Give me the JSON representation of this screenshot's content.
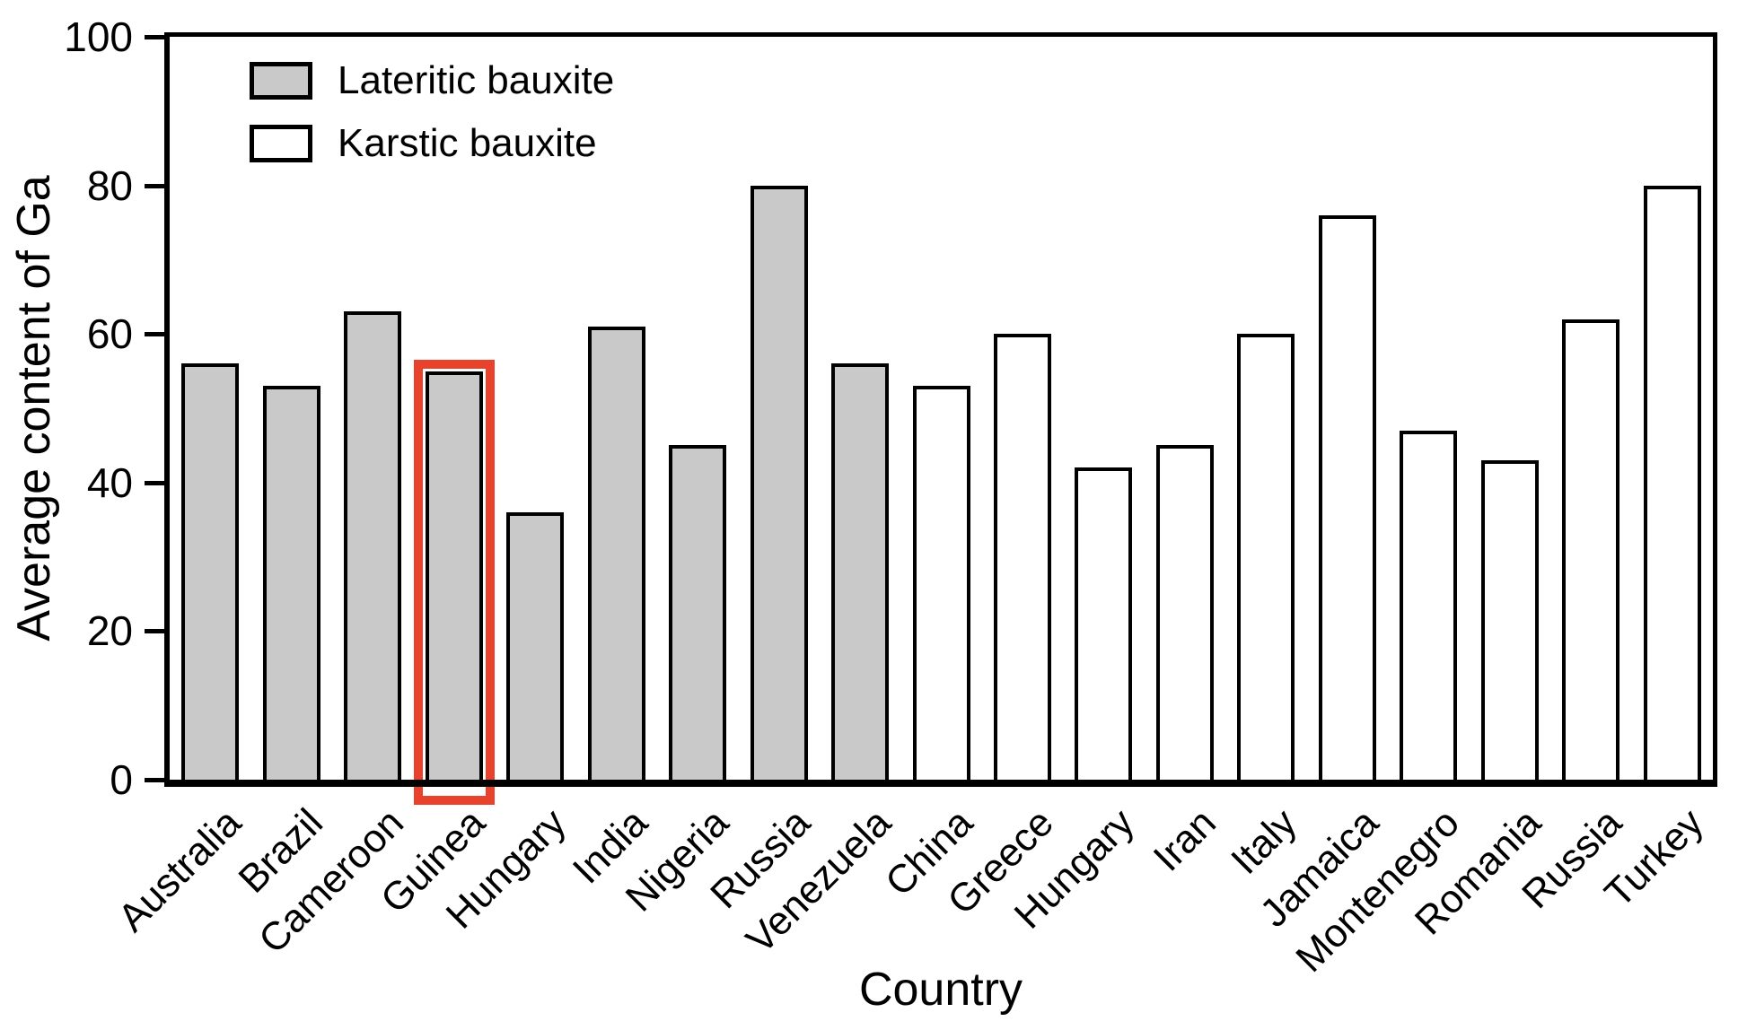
{
  "chart_data": {
    "type": "bar",
    "title": "",
    "xlabel": "Country",
    "ylabel": "Average content of Ga",
    "ylim": [
      0,
      100
    ],
    "yticks": [
      0,
      20,
      40,
      60,
      80,
      100
    ],
    "y_tick_labels": [
      "0",
      "20",
      "40",
      "60",
      "80",
      "100"
    ],
    "grid": false,
    "legend_position": "inside-top-left",
    "bar_border_color": "#000000",
    "highlight_color": "#e8422c",
    "categories": [
      "Australia",
      "Brazil",
      "Cameroon",
      "Guinea",
      "Hungary",
      "India",
      "Nigeria",
      "Russia",
      "Venezuela",
      "China",
      "Greece",
      "Hungary",
      "Iran",
      "Italy",
      "Jamaica",
      "Montenegro",
      "Romania",
      "Russia",
      "Turkey"
    ],
    "series": [
      {
        "name": "Lateritic bauxite",
        "fill": "#c9c9c9",
        "categories": [
          "Australia",
          "Brazil",
          "Cameroon",
          "Guinea",
          "Hungary",
          "India",
          "Nigeria",
          "Russia",
          "Venezuela"
        ],
        "values": [
          56,
          53,
          63,
          55,
          36,
          61,
          45,
          80,
          56
        ]
      },
      {
        "name": "Karstic bauxite",
        "fill": "#ffffff",
        "categories": [
          "China",
          "Greece",
          "Hungary",
          "Iran",
          "Italy",
          "Jamaica",
          "Montenegro",
          "Romania",
          "Russia",
          "Turkey"
        ],
        "values": [
          53,
          60,
          42,
          45,
          60,
          76,
          47,
          43,
          62,
          80
        ]
      }
    ],
    "highlight": {
      "series": "Lateritic bauxite",
      "category": "Guinea",
      "color": "#e8422c"
    }
  }
}
